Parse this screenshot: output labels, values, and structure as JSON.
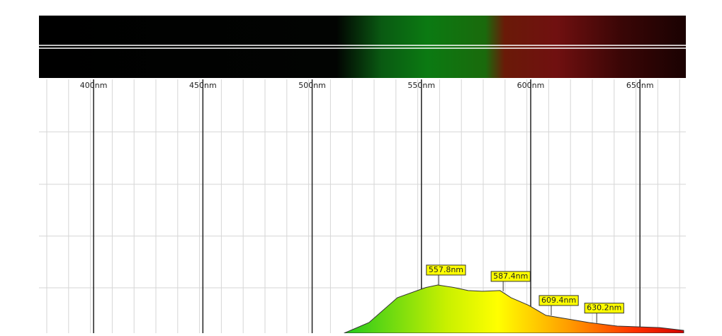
{
  "chart_data": {
    "type": "spectrum",
    "xlim": [
      375,
      671
    ],
    "ylim": [
      0,
      1
    ],
    "xticks": [
      {
        "value": 400,
        "label": "400nm"
      },
      {
        "value": 450,
        "label": "450nm"
      },
      {
        "value": 500,
        "label": "500nm"
      },
      {
        "value": 550,
        "label": "550nm"
      },
      {
        "value": 600,
        "label": "600nm"
      },
      {
        "value": 650,
        "label": "650nm"
      }
    ],
    "x": [
      514.6,
      526,
      539,
      552,
      557.5,
      565,
      571.4,
      578,
      586,
      591,
      599,
      607,
      617,
      626.6,
      639.6,
      659,
      670
    ],
    "values": [
      0,
      0.042,
      0.14,
      0.18,
      0.19,
      0.18,
      0.168,
      0.165,
      0.168,
      0.14,
      0.11,
      0.07,
      0.056,
      0.042,
      0.028,
      0.022,
      0.011
    ],
    "annotations": [
      {
        "x": 557.8,
        "y": 0.19,
        "label": "557.8nm"
      },
      {
        "x": 587.4,
        "y": 0.165,
        "label": "587.4nm"
      },
      {
        "x": 609.4,
        "y": 0.07,
        "label": "609.4nm"
      },
      {
        "x": 630.2,
        "y": 0.04,
        "label": "630.2nm"
      }
    ]
  }
}
